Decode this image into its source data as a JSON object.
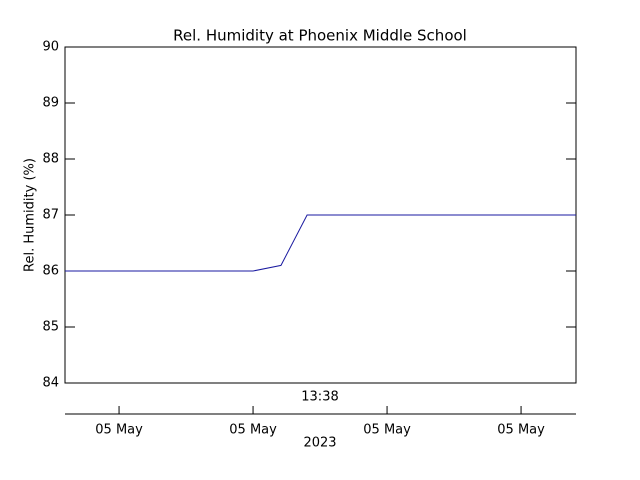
{
  "chart_data": {
    "type": "line",
    "title": "Rel. Humidity at Phoenix Middle School",
    "y_label": "Rel. Humidity (%)",
    "x_label": "2023",
    "annotation": "13:38",
    "x": [
      0,
      8.42,
      9.67,
      10.84,
      22.88
    ],
    "series": [
      {
        "name": "Rel. Humidity",
        "color": "#1a1aa0",
        "values": [
          86,
          86,
          86.1,
          87,
          87
        ]
      }
    ],
    "xlim": [
      0,
      22.88
    ],
    "xticks": [
      {
        "value": 2.42,
        "label": "05 May"
      },
      {
        "value": 8.42,
        "label": "05 May"
      },
      {
        "value": 14.42,
        "label": "05 May"
      },
      {
        "value": 20.42,
        "label": "05 May"
      }
    ],
    "ylim": [
      84,
      90
    ],
    "yticks": [
      84,
      85,
      86,
      87,
      88,
      89,
      90
    ],
    "grid": false
  }
}
